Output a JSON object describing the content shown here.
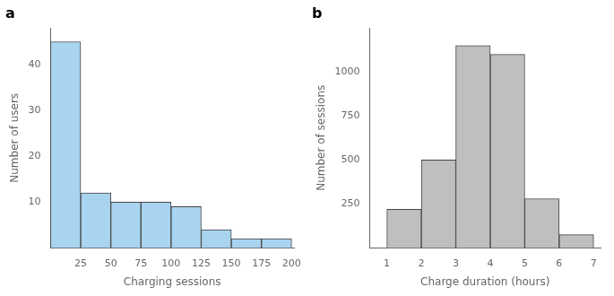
{
  "chart_data": [
    {
      "type": "histogram",
      "title": "a",
      "bins": [
        0,
        25,
        50,
        75,
        100,
        125,
        150,
        175,
        200
      ],
      "values": [
        45,
        12,
        10,
        10,
        9,
        4,
        2,
        2
      ],
      "color": "#a8d4f0",
      "xlabel": "Charging sessions",
      "ylabel": "Number of users",
      "xlim": [
        0,
        202
      ],
      "ylim": [
        0,
        48
      ],
      "xticks": [
        25,
        50,
        75,
        100,
        125,
        150,
        175,
        200
      ],
      "yticks": [
        10,
        20,
        30,
        40
      ],
      "grid": false
    },
    {
      "type": "histogram",
      "title": "b",
      "bins": [
        1,
        2,
        3,
        4,
        5,
        6,
        7
      ],
      "values": [
        220,
        500,
        1150,
        1100,
        280,
        75
      ],
      "color": "#c0bfbd",
      "xlabel": "Charge duration (hours)",
      "ylabel": "Number of sessions",
      "xlim": [
        0.5,
        7.2
      ],
      "ylim": [
        0,
        1250
      ],
      "xticks": [
        1,
        2,
        3,
        4,
        5,
        6,
        7
      ],
      "yticks": [
        250,
        500,
        750,
        1000
      ],
      "grid": false
    }
  ]
}
